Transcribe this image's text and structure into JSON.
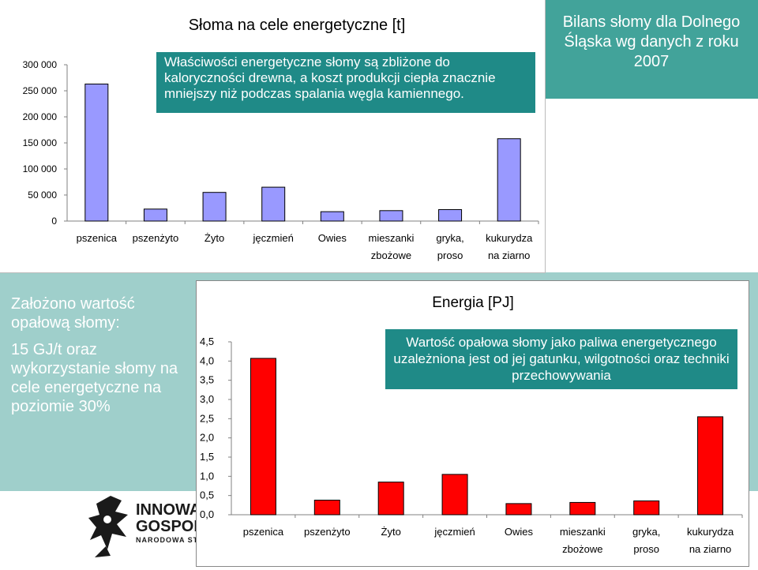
{
  "chart_data": [
    {
      "type": "bar",
      "title": "Słoma na cele energetyczne [t]",
      "categories": [
        [
          "pszenica"
        ],
        [
          "pszenżyto"
        ],
        [
          "Żyto"
        ],
        [
          "jęczmień"
        ],
        [
          "Owies"
        ],
        [
          "mieszanki",
          "zbożowe"
        ],
        [
          "gryka,",
          "proso"
        ],
        [
          "kukurydza",
          "na ziarno"
        ]
      ],
      "values": [
        263000,
        23000,
        55000,
        65000,
        18000,
        20000,
        22000,
        158000
      ],
      "yticks": [
        "0",
        "50 000",
        "100 000",
        "150 000",
        "200 000",
        "250 000",
        "300 000"
      ],
      "ylim": [
        0,
        300000
      ],
      "bar_color": "#9999ff"
    },
    {
      "type": "bar",
      "title": "Energia [PJ]",
      "categories": [
        [
          "pszenica"
        ],
        [
          "pszenżyto"
        ],
        [
          "Żyto"
        ],
        [
          "jęczmień"
        ],
        [
          "Owies"
        ],
        [
          "mieszanki",
          "zbożowe"
        ],
        [
          "gryka,",
          "proso"
        ],
        [
          "kukurydza",
          "na ziarno"
        ]
      ],
      "values": [
        4.07,
        0.38,
        0.85,
        1.05,
        0.29,
        0.32,
        0.36,
        2.55
      ],
      "yticks": [
        "0,0",
        "0,5",
        "1,0",
        "1,5",
        "2,0",
        "2,5",
        "3,0",
        "3,5",
        "4,0",
        "4,5"
      ],
      "ylim": [
        0,
        4.5
      ],
      "bar_color": "#ff0000"
    }
  ],
  "header_right": {
    "title": "Bilans słomy dla Dolnego Śląska wg danych z roku 2007"
  },
  "callouts": {
    "top": "Właściwości energetyczne słomy są zbliżone do kaloryczności drewna, a koszt produkcji ciepła znacznie mniejszy niż podczas spalania węgla kamiennego.",
    "bottom": "Wartość opałowa słomy jako paliwa energetycznego uzależniona jest od jej gatunku, wilgotności oraz techniki przechowywania"
  },
  "left_text": {
    "p1": "Założono wartość opałową słomy:",
    "p2": "15 GJ/t oraz wykorzystanie słomy na cele energetyczne na poziomie 30%"
  },
  "logo": {
    "line1": "INNOWA",
    "line2": "GOSPOD",
    "line3": "NARODOWA STR",
    "icon": "innovative-economy-logo-icon"
  },
  "colors": {
    "teal_light": "#9fcfcb",
    "teal_dark": "#42a39a",
    "callout": "#1f8a87"
  }
}
